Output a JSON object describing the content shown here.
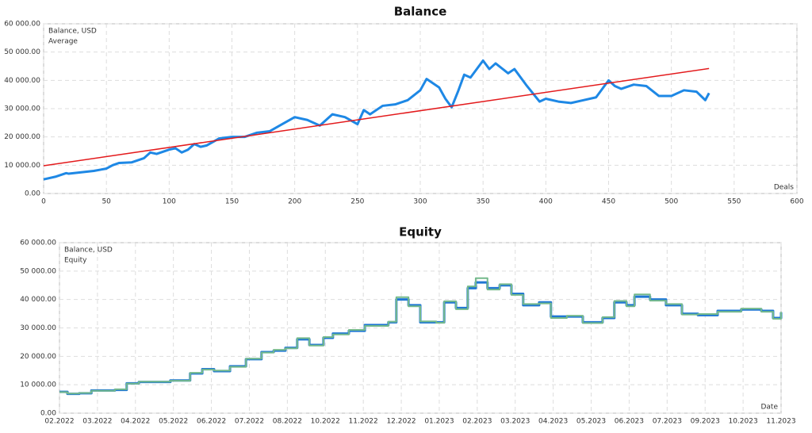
{
  "chart_data": [
    {
      "type": "line",
      "title": "Balance",
      "x_label": "Deals",
      "legend": "top-left",
      "grid": true,
      "xlim": [
        0,
        600
      ],
      "xticks": [
        0,
        50,
        100,
        150,
        200,
        250,
        300,
        350,
        400,
        450,
        500,
        550,
        600
      ],
      "ylim": [
        0,
        60000
      ],
      "yticks": [
        {
          "value": 0,
          "label": "0.00"
        },
        {
          "value": 10000,
          "label": "10 000.00"
        },
        {
          "value": 20000,
          "label": "20 000.00"
        },
        {
          "value": 30000,
          "label": "30 000.00"
        },
        {
          "value": 40000,
          "label": "40 000.00"
        },
        {
          "value": 50000,
          "label": "50 000.00"
        },
        {
          "value": 60000,
          "label": "60 000.00"
        }
      ],
      "series": [
        {
          "name": "Balance, USD",
          "color": "#1e88e5",
          "width": 3,
          "x": [
            0,
            10,
            18,
            20,
            30,
            40,
            50,
            55,
            60,
            70,
            80,
            85,
            90,
            100,
            105,
            110,
            115,
            120,
            125,
            130,
            140,
            150,
            160,
            170,
            180,
            190,
            200,
            210,
            220,
            230,
            240,
            250,
            255,
            260,
            270,
            280,
            290,
            300,
            305,
            315,
            320,
            325,
            330,
            335,
            340,
            350,
            355,
            360,
            370,
            375,
            385,
            395,
            400,
            410,
            420,
            430,
            440,
            450,
            455,
            460,
            470,
            480,
            490,
            500,
            510,
            520,
            527,
            530
          ],
          "values": [
            5000,
            6000,
            7200,
            7000,
            7500,
            8000,
            8800,
            10000,
            10800,
            11000,
            12500,
            14500,
            14000,
            15500,
            16000,
            14500,
            15500,
            17500,
            16500,
            17000,
            19500,
            20000,
            20000,
            21500,
            22000,
            24500,
            27000,
            26000,
            24000,
            28000,
            27000,
            24500,
            29500,
            28000,
            31000,
            31500,
            33000,
            36500,
            40500,
            37500,
            33500,
            30500,
            36000,
            42000,
            41000,
            47000,
            44000,
            46000,
            42500,
            44000,
            38000,
            32500,
            33500,
            32500,
            32000,
            33000,
            34000,
            40000,
            38000,
            37000,
            38500,
            38000,
            34500,
            34500,
            36500,
            36000,
            33000,
            35500
          ]
        },
        {
          "name": "Average",
          "color": "#e31a1c",
          "width": 1.5,
          "x": [
            0,
            530
          ],
          "values": [
            9800,
            44200
          ]
        }
      ]
    },
    {
      "type": "line",
      "title": "Equity",
      "x_label": "Date",
      "legend": "top-left",
      "grid": true,
      "step": true,
      "xlim": [
        0,
        19
      ],
      "xticks": [
        {
          "value": 0,
          "label": "02.2022"
        },
        {
          "value": 1,
          "label": "03.2022"
        },
        {
          "value": 2,
          "label": "04.2022"
        },
        {
          "value": 3,
          "label": "05.2022"
        },
        {
          "value": 4,
          "label": "06.2022"
        },
        {
          "value": 5,
          "label": "07.2022"
        },
        {
          "value": 6,
          "label": "08.2022"
        },
        {
          "value": 7,
          "label": "10.2022"
        },
        {
          "value": 8,
          "label": "11.2022"
        },
        {
          "value": 9,
          "label": "12.2022"
        },
        {
          "value": 10,
          "label": "01.2023"
        },
        {
          "value": 11,
          "label": "02.2023"
        },
        {
          "value": 12,
          "label": "03.2023"
        },
        {
          "value": 13,
          "label": "04.2023"
        },
        {
          "value": 14,
          "label": "05.2023"
        },
        {
          "value": 15,
          "label": "06.2023"
        },
        {
          "value": 16,
          "label": "07.2023"
        },
        {
          "value": 17,
          "label": "09.2023"
        },
        {
          "value": 18,
          "label": "10.2023"
        },
        {
          "value": 19,
          "label": "11.2023"
        }
      ],
      "ylim": [
        0,
        60000
      ],
      "yticks": [
        {
          "value": 0,
          "label": "0.00"
        },
        {
          "value": 10000,
          "label": "10 000.00"
        },
        {
          "value": 20000,
          "label": "20 000.00"
        },
        {
          "value": 30000,
          "label": "30 000.00"
        },
        {
          "value": 40000,
          "label": "40 000.00"
        },
        {
          "value": 50000,
          "label": "50 000.00"
        },
        {
          "value": 60000,
          "label": "60 000.00"
        }
      ],
      "series": [
        {
          "name": "Balance, USD",
          "color": "#1f77d4",
          "width": 3,
          "x": [
            0,
            0.21,
            0.52,
            0.84,
            1.46,
            1.77,
            2.09,
            2.92,
            3.44,
            3.76,
            4.07,
            4.49,
            4.91,
            5.32,
            5.64,
            5.95,
            6.26,
            6.58,
            6.95,
            7.2,
            7.62,
            8.04,
            8.66,
            8.87,
            9.19,
            9.5,
            9.92,
            10.13,
            10.44,
            10.75,
            10.96,
            11.27,
            11.59,
            11.9,
            12.21,
            12.63,
            12.94,
            13.36,
            13.78,
            14.3,
            14.61,
            14.93,
            15.14,
            15.55,
            15.97,
            16.39,
            16.81,
            17.33,
            17.95,
            18.48,
            18.79,
            19
          ],
          "values": [
            7500,
            6800,
            7000,
            8000,
            8200,
            10500,
            11000,
            11500,
            14000,
            15500,
            14800,
            16500,
            19000,
            21500,
            22000,
            23000,
            26000,
            24000,
            26500,
            28000,
            29000,
            31000,
            32000,
            40000,
            38000,
            32000,
            32000,
            39000,
            37000,
            44000,
            46000,
            44000,
            45000,
            42000,
            38000,
            39000,
            34000,
            34000,
            32000,
            33500,
            39000,
            38000,
            41000,
            40000,
            38000,
            35000,
            34500,
            36000,
            36500,
            36000,
            33500,
            35500
          ]
        },
        {
          "name": "Equity",
          "color": "#74b98c",
          "width": 2,
          "x": [
            0,
            0.21,
            0.52,
            0.84,
            1.46,
            1.77,
            2.09,
            2.92,
            3.44,
            3.76,
            4.07,
            4.49,
            4.91,
            5.32,
            5.64,
            5.95,
            6.26,
            6.58,
            6.95,
            7.2,
            7.62,
            8.04,
            8.66,
            8.87,
            9.19,
            9.5,
            9.92,
            10.13,
            10.44,
            10.75,
            10.96,
            11.27,
            11.59,
            11.9,
            12.21,
            12.63,
            12.94,
            13.36,
            13.78,
            14.3,
            14.61,
            14.93,
            15.14,
            15.55,
            15.97,
            16.39,
            16.81,
            17.33,
            17.95,
            18.48,
            18.79,
            19
          ],
          "values": [
            7400,
            6900,
            7100,
            7900,
            8400,
            10400,
            11100,
            11400,
            14200,
            15300,
            15000,
            16300,
            19200,
            21300,
            22300,
            22800,
            26400,
            23800,
            26800,
            27700,
            29300,
            30700,
            32200,
            40800,
            37600,
            32300,
            31800,
            39400,
            36600,
            44600,
            47500,
            43500,
            45400,
            41600,
            38400,
            38600,
            33500,
            34300,
            31700,
            33800,
            39500,
            37600,
            41800,
            39600,
            38400,
            34700,
            34900,
            35700,
            36800,
            35700,
            33200,
            35600
          ]
        }
      ]
    }
  ]
}
